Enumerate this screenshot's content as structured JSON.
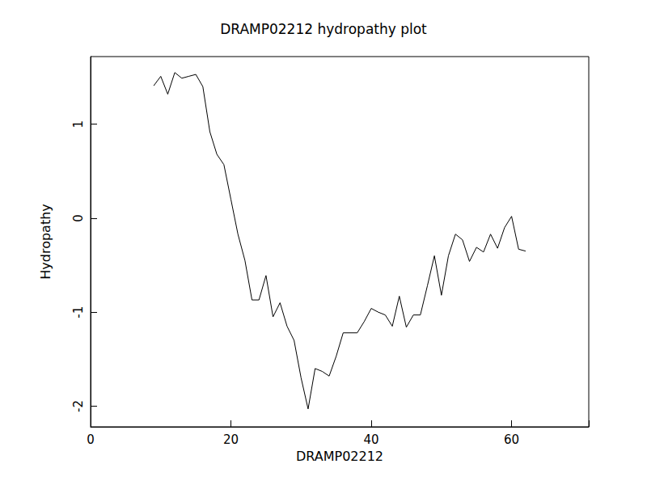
{
  "chart_data": {
    "type": "line",
    "title": "DRAMP02212 hydropathy plot",
    "x_label": "DRAMP02212",
    "y_label": "Hydropathy",
    "x": [
      9,
      10,
      11,
      12,
      13,
      14,
      15,
      16,
      17,
      18,
      19,
      20,
      21,
      22,
      23,
      24,
      25,
      26,
      27,
      28,
      29,
      30,
      31,
      32,
      33,
      34,
      35,
      36,
      37,
      38,
      39,
      40,
      41,
      42,
      43,
      44,
      45,
      46,
      47,
      48,
      49,
      50,
      51,
      52,
      53,
      54,
      55,
      56,
      57,
      58,
      59,
      60,
      61,
      62
    ],
    "series": [
      {
        "name": "Hydropathy",
        "color": "#000000",
        "values": [
          1.41,
          1.51,
          1.32,
          1.55,
          1.49,
          1.51,
          1.53,
          1.4,
          0.92,
          0.68,
          0.57,
          0.2,
          -0.17,
          -0.45,
          -0.87,
          -0.87,
          -0.61,
          -1.05,
          -0.9,
          -1.15,
          -1.3,
          -1.7,
          -2.03,
          -1.6,
          -1.63,
          -1.68,
          -1.47,
          -1.22,
          -1.22,
          -1.22,
          -1.1,
          -0.96,
          -1.0,
          -1.03,
          -1.15,
          -0.83,
          -1.16,
          -1.03,
          -1.03,
          -0.72,
          -0.4,
          -0.82,
          -0.4,
          -0.17,
          -0.23,
          -0.46,
          -0.31,
          -0.36,
          -0.17,
          -0.32,
          -0.1,
          0.02,
          -0.33,
          -0.35
        ]
      }
    ],
    "xlim": [
      0,
      71
    ],
    "xticks": [
      0,
      20,
      40,
      60
    ],
    "ylim": [
      -2.22,
      1.72
    ],
    "yticks": [
      -2,
      -1,
      0,
      1
    ],
    "grid": false
  }
}
